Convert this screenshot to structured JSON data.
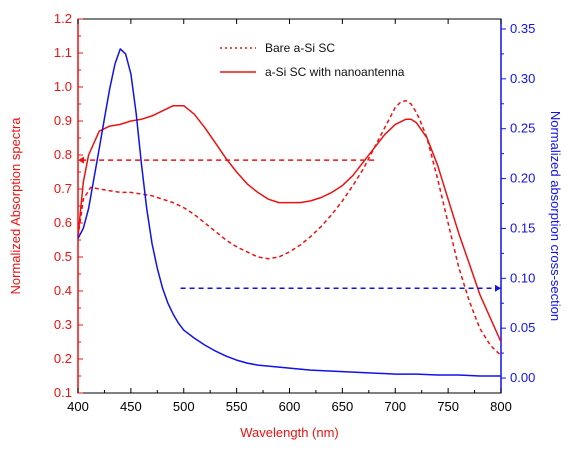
{
  "chart_data": {
    "type": "line",
    "title": "",
    "xlabel": "Wavelength (nm)",
    "ylabel_left": "Normalized Absorption spectra",
    "ylabel_right": "Normalized absorption cross-section",
    "xlim": [
      400,
      800
    ],
    "ylim_left": [
      0.1,
      1.2
    ],
    "ylim_right": [
      -0.015,
      0.36
    ],
    "x_ticks": [
      400,
      450,
      500,
      550,
      600,
      650,
      700,
      750,
      800
    ],
    "x_tick_labels": [
      "400",
      "450",
      "500",
      "550",
      "600",
      "650",
      "700",
      "750",
      "800"
    ],
    "y_left_ticks": [
      0.1,
      0.2,
      0.3,
      0.4,
      0.5,
      0.6,
      0.7,
      0.8,
      0.9,
      1.0,
      1.1,
      1.2
    ],
    "y_left_tick_labels": [
      "0.1",
      "0.2",
      "0.3",
      "0.4",
      "0.5",
      "0.6",
      "0.7",
      "0.8",
      "0.9",
      "1.0",
      "1.1",
      "1.2"
    ],
    "y_right_ticks": [
      0.0,
      0.05,
      0.1,
      0.15,
      0.2,
      0.25,
      0.3,
      0.35
    ],
    "y_right_tick_labels": [
      "0.00",
      "0.05",
      "0.10",
      "0.15",
      "0.20",
      "0.25",
      "0.30",
      "0.35"
    ],
    "grid": false,
    "legend_position": "top-center",
    "colors": {
      "left_axis": "#ee1111",
      "right_axis": "#1111ee"
    },
    "series": [
      {
        "name": "Bare a-Si SC",
        "axis": "left",
        "style": "dotted",
        "color": "#ee1111",
        "x": [
          400,
          405,
          412,
          420,
          430,
          440,
          450,
          460,
          470,
          480,
          490,
          500,
          510,
          520,
          530,
          540,
          550,
          560,
          570,
          580,
          590,
          600,
          610,
          620,
          630,
          640,
          650,
          660,
          670,
          680,
          690,
          700,
          705,
          710,
          715,
          720,
          725,
          730,
          740,
          750,
          760,
          770,
          780,
          790,
          800
        ],
        "y": [
          0.56,
          0.67,
          0.705,
          0.7,
          0.695,
          0.69,
          0.69,
          0.685,
          0.68,
          0.67,
          0.66,
          0.645,
          0.625,
          0.6,
          0.575,
          0.55,
          0.53,
          0.515,
          0.5,
          0.495,
          0.5,
          0.515,
          0.535,
          0.56,
          0.59,
          0.625,
          0.665,
          0.71,
          0.76,
          0.82,
          0.88,
          0.94,
          0.955,
          0.96,
          0.95,
          0.925,
          0.89,
          0.85,
          0.73,
          0.6,
          0.47,
          0.37,
          0.29,
          0.24,
          0.21
        ]
      },
      {
        "name": "a-Si SC with nanoantenna",
        "axis": "left",
        "style": "solid",
        "color": "#ee1111",
        "x": [
          400,
          405,
          410,
          420,
          430,
          440,
          450,
          460,
          470,
          480,
          490,
          500,
          510,
          520,
          530,
          540,
          550,
          560,
          570,
          580,
          590,
          600,
          610,
          620,
          630,
          640,
          650,
          660,
          670,
          680,
          690,
          700,
          710,
          715,
          720,
          730,
          740,
          750,
          760,
          770,
          780,
          790,
          800
        ],
        "y": [
          0.56,
          0.72,
          0.8,
          0.87,
          0.885,
          0.89,
          0.9,
          0.905,
          0.915,
          0.93,
          0.945,
          0.945,
          0.92,
          0.88,
          0.835,
          0.79,
          0.75,
          0.715,
          0.69,
          0.67,
          0.66,
          0.66,
          0.66,
          0.665,
          0.675,
          0.69,
          0.71,
          0.74,
          0.78,
          0.82,
          0.86,
          0.89,
          0.905,
          0.905,
          0.895,
          0.85,
          0.77,
          0.67,
          0.57,
          0.48,
          0.39,
          0.32,
          0.25
        ]
      },
      {
        "name": "",
        "axis": "right",
        "style": "solid",
        "color": "#1111ee",
        "x": [
          400,
          405,
          410,
          415,
          420,
          425,
          430,
          435,
          440,
          445,
          450,
          455,
          460,
          465,
          470,
          475,
          480,
          485,
          490,
          495,
          500,
          510,
          520,
          530,
          540,
          550,
          560,
          570,
          580,
          590,
          600,
          620,
          640,
          660,
          680,
          700,
          720,
          740,
          760,
          780,
          800
        ],
        "y": [
          0.14,
          0.15,
          0.17,
          0.2,
          0.23,
          0.26,
          0.29,
          0.315,
          0.33,
          0.325,
          0.305,
          0.265,
          0.215,
          0.17,
          0.135,
          0.11,
          0.09,
          0.075,
          0.064,
          0.055,
          0.048,
          0.04,
          0.033,
          0.027,
          0.022,
          0.018,
          0.015,
          0.013,
          0.012,
          0.011,
          0.01,
          0.008,
          0.007,
          0.006,
          0.005,
          0.004,
          0.004,
          0.003,
          0.003,
          0.002,
          0.002
        ]
      }
    ],
    "annotations": [
      {
        "type": "arrow",
        "axis": "left",
        "color": "#ee1111",
        "style": "dashed",
        "direction": "left",
        "x_from": 680,
        "x_to": 400,
        "y": 0.785
      },
      {
        "type": "arrow",
        "axis": "right",
        "color": "#1111ee",
        "style": "dashed",
        "direction": "right",
        "x_from": 497,
        "x_to": 800,
        "y": 0.09
      }
    ]
  }
}
